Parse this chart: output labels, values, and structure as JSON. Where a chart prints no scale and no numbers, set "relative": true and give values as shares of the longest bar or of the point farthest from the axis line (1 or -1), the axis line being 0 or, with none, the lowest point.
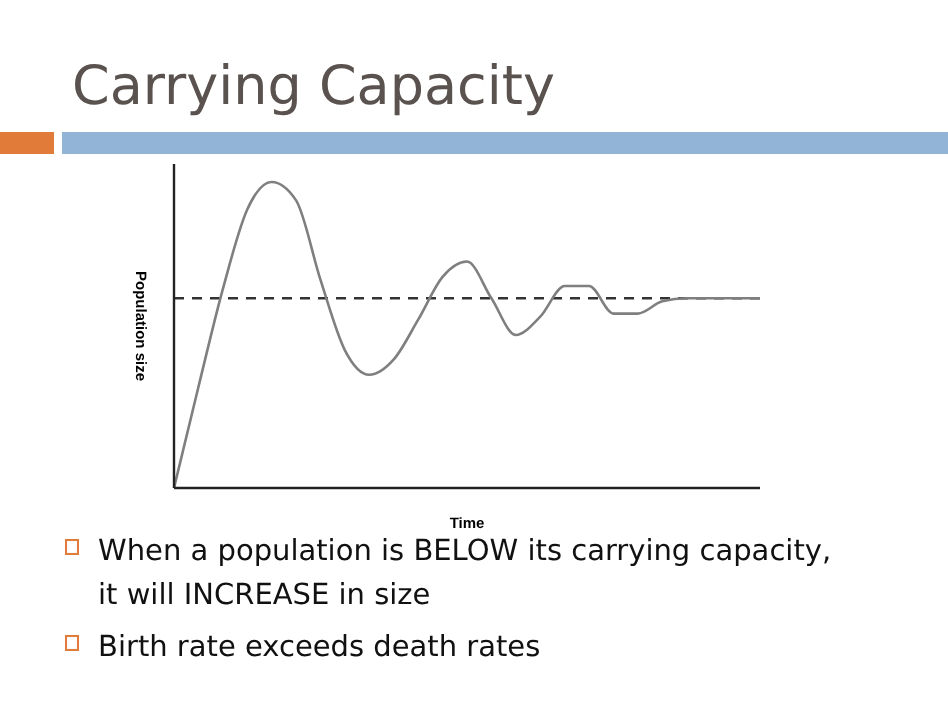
{
  "chart_data": {
    "type": "line",
    "title": "Carrying Capacity",
    "xlabel": "Time",
    "ylabel": "Population size",
    "relative": true,
    "categories": [
      null,
      null,
      null,
      null,
      null,
      null,
      null,
      null,
      null,
      null,
      null,
      null,
      null,
      null,
      null,
      null,
      null,
      null,
      null,
      null,
      null,
      null,
      null,
      null,
      null
    ],
    "series": [
      {
        "color": "#7f7f7f",
        "values": [
          0,
          0.33,
          0.65,
          0.91,
          1,
          0.94,
          0.68,
          0.45,
          0.37,
          0.42,
          0.55,
          0.69,
          0.74,
          0.62,
          0.5,
          0.56,
          0.66,
          0.66,
          0.57,
          0.57,
          0.61,
          0.62,
          0.62,
          0.62,
          0.62
        ]
      }
    ],
    "ref_lines": [
      {
        "axis": "y",
        "value": 0.62,
        "color": "#333333",
        "line_style": "dashed"
      }
    ],
    "annotations": [
      "When a population is BELOW its carrying capacity, it will INCREASE in size",
      "Birth rate exceeds death rates"
    ],
    "line_style": "solid"
  }
}
